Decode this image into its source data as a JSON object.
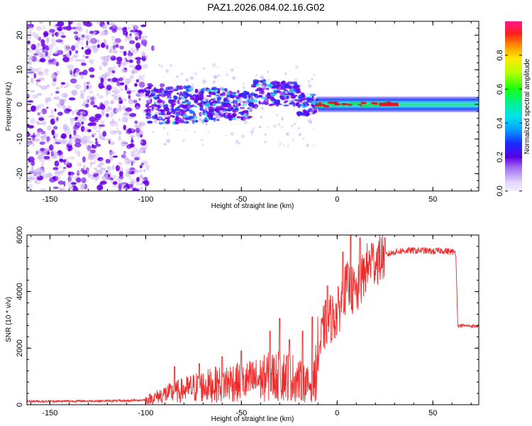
{
  "title": "PAZ1.2026.084.02.16.G02",
  "colors": {
    "snr_line": "#ee2b2b",
    "spectro_strong": "#6a00e8",
    "spectro_weak": "#cdb5f3",
    "band_green": "#19e06a",
    "band_cyan": "#22d4f0",
    "band_red": "#e6141e",
    "band_blue": "#1a35ff"
  },
  "chart_data": [
    {
      "type": "heatmap",
      "title": "",
      "xlabel": "Height of straight line (km)",
      "ylabel": "Frequency (Hz)",
      "xlim": [
        -162,
        74
      ],
      "ylim": [
        -25,
        24
      ],
      "xticks": [
        -150,
        -100,
        -50,
        0,
        50
      ],
      "xtick_labels": [
        "-150",
        "-100",
        "-50",
        "0",
        "50"
      ],
      "yticks": [
        -20,
        -10,
        0,
        10,
        20
      ],
      "ytick_labels": [
        "-20",
        "-10",
        "0",
        "10",
        "20"
      ],
      "colorbar": {
        "label": "Normalized spectral amplitude",
        "range": [
          0,
          1
        ],
        "ticks": [
          0.0,
          0.2,
          0.4,
          0.6,
          0.8
        ],
        "tick_labels": [
          "0.0",
          "0.2",
          "0.4",
          "0.6",
          "0.8"
        ]
      },
      "regions": [
        {
          "name": "noise",
          "x_range": [
            -162,
            -100
          ],
          "freq_range": [
            -25,
            24
          ],
          "amplitude": 0.15
        },
        {
          "name": "turbulent band",
          "x_range": [
            -100,
            -10
          ],
          "freq_range": [
            -5,
            5
          ],
          "amplitude": 0.2
        },
        {
          "name": "tracked carrier",
          "x_range": [
            -10,
            74
          ],
          "freq_range": [
            -1,
            1
          ],
          "amplitude": 0.7
        }
      ]
    },
    {
      "type": "line",
      "title": "",
      "xlabel": "Height of straight line (km)",
      "ylabel": "SNR (10 * v/v)",
      "xlim": [
        -162,
        74
      ],
      "ylim": [
        0,
        6000
      ],
      "xticks": [
        -150,
        -100,
        -50,
        0,
        50
      ],
      "xtick_labels": [
        "-150",
        "-100",
        "-50",
        "0",
        "50"
      ],
      "yticks": [
        0,
        2000,
        4000,
        6000
      ],
      "ytick_labels": [
        "0",
        "2000",
        "4000",
        "6000"
      ],
      "series": [
        {
          "name": "SNR",
          "x": [
            -162,
            -150,
            -130,
            -110,
            -100,
            -95,
            -90,
            -85,
            -80,
            -75,
            -70,
            -65,
            -60,
            -55,
            -50,
            -45,
            -40,
            -35,
            -30,
            -25,
            -20,
            -15,
            -12,
            -10,
            -7,
            -5,
            -2,
            0,
            3,
            5,
            8,
            10,
            12,
            15,
            18,
            20,
            22,
            25,
            28,
            30,
            35,
            40,
            45,
            50,
            55,
            60,
            62,
            63,
            65,
            70,
            74
          ],
          "y": [
            120,
            120,
            130,
            140,
            170,
            260,
            380,
            430,
            520,
            600,
            650,
            700,
            750,
            820,
            760,
            850,
            900,
            1000,
            1000,
            1050,
            850,
            700,
            800,
            1700,
            2700,
            3000,
            3100,
            3200,
            3800,
            4200,
            4000,
            3900,
            4200,
            4800,
            5000,
            5100,
            5150,
            5300,
            5350,
            5400,
            5450,
            5450,
            5450,
            5420,
            5450,
            5400,
            5400,
            2800,
            2800,
            2780,
            2780
          ],
          "peaks": [
            {
              "x": -85,
              "y": 1350
            },
            {
              "x": -72,
              "y": 1450
            },
            {
              "x": -60,
              "y": 1700
            },
            {
              "x": -50,
              "y": 1900
            },
            {
              "x": -35,
              "y": 2600
            },
            {
              "x": -30,
              "y": 3050
            },
            {
              "x": -25,
              "y": 2300
            },
            {
              "x": -18,
              "y": 2600
            },
            {
              "x": -13,
              "y": 3100
            },
            {
              "x": -5,
              "y": 4200
            },
            {
              "x": 3,
              "y": 5400
            },
            {
              "x": 7,
              "y": 6000
            },
            {
              "x": 12,
              "y": 5900
            },
            {
              "x": 18,
              "y": 5700
            },
            {
              "x": 25,
              "y": 5900
            }
          ]
        }
      ]
    }
  ]
}
